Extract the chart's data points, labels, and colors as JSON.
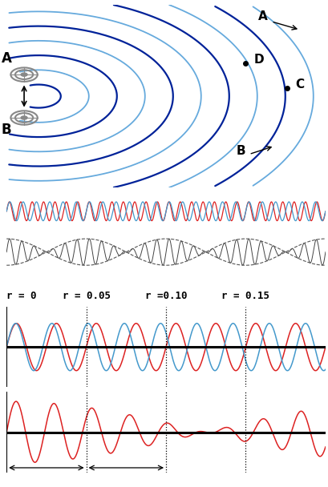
{
  "bg_color": "#ffffff",
  "yellow_bg": "#f0f0d0",
  "wave1_color": "#dd2222",
  "wave2_color": "#4499cc",
  "beat_color": "#dd2222",
  "curve_color_dark": "#002299",
  "curve_color_light": "#66aadd",
  "r_labels": [
    "r = 0",
    "r = 0.05",
    "r =0.10",
    "r = 0.15"
  ],
  "r_positions": [
    0.0,
    0.05,
    0.1,
    0.15
  ],
  "f1": 40,
  "f2": 44,
  "t_max": 0.2,
  "mid_f1": 28,
  "mid_f2": 24,
  "beat_f1": 40,
  "beat_f2": 44
}
